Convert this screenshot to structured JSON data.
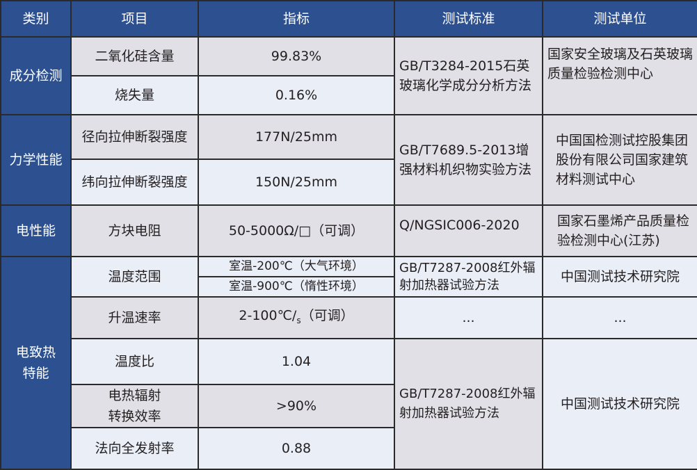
{
  "colors": {
    "header": "#2d5190",
    "gray_row": "#e0e0e6",
    "light_row": "#e9eef7",
    "border": "#2a2a2a"
  },
  "headers": [
    "类别",
    "项目",
    "指标",
    "测试标准",
    "测试单位"
  ],
  "groups": [
    {
      "category": "成分检测",
      "standard": "GB/T3284-2015石英玻璃化学成分分析方法",
      "unit": "国家安全玻璃及石英玻璃质量检验检测中心",
      "rows": [
        {
          "item": "二氧化硅含量",
          "value": "99.83%"
        },
        {
          "item": "烧失量",
          "value": "0.16%"
        }
      ]
    },
    {
      "category": "力学性能",
      "standard": "GB/T7689.5-2013增强材料机织物实验方法",
      "unit": "中国国检测试控股集团股份有限公司国家建筑材料测试中心",
      "rows": [
        {
          "item": "径向拉伸断裂强度",
          "value": "177N/25mm"
        },
        {
          "item": "纬向拉伸断裂强度",
          "value": "150N/25mm"
        }
      ]
    },
    {
      "category": "电性能",
      "standard": "Q/NGSIC006-2020",
      "unit": "国家石墨烯产品质量检验检测中心(江苏)",
      "rows": [
        {
          "item": "方块电阻",
          "value": "50-5000Ω/□（可调）"
        }
      ]
    },
    {
      "category": "电致热特能",
      "rows": [
        {
          "item": "温度范围",
          "value_a": "室温-200℃（大气环境）",
          "value_b": "室温-900℃（惰性环境）",
          "standard": "GB/T7287-2008红外辐射加热器试验方法",
          "unit": "中国测试技术研究院"
        },
        {
          "item": "升温速率",
          "value": "2-100℃/",
          "value_sub": "s",
          "value_tail": "（可调）",
          "standard": "...",
          "unit": "..."
        },
        {
          "item": "温度比",
          "value": "1.04"
        },
        {
          "item": "电热辐射转换效率",
          "value": ">90%"
        },
        {
          "item": "法向全发射率",
          "value": "0.88"
        }
      ],
      "standard": "GB/T7287-2008红外辐射加热器试验方法",
      "unit": "中国测试技术研究院"
    }
  ]
}
